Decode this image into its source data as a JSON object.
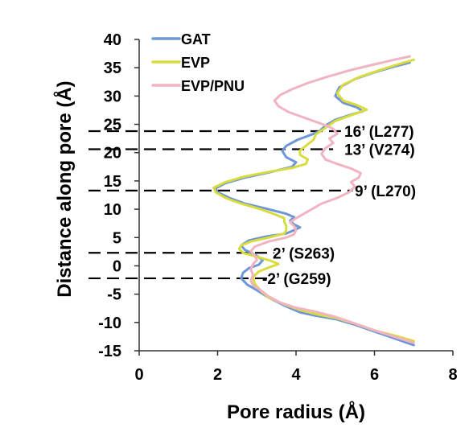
{
  "chart_data": {
    "type": "line",
    "title": "",
    "xlabel": "Pore radius (Å)",
    "ylabel": "Distance along pore (Å)",
    "xlim": [
      0,
      8
    ],
    "ylim": [
      -15,
      40
    ],
    "xticks": [
      "0",
      "2",
      "4",
      "6",
      "8"
    ],
    "yticks": [
      "-15",
      "-10",
      "-5",
      "0",
      "5",
      "10",
      "15",
      "20",
      "25",
      "30",
      "35",
      "40"
    ],
    "legend_position": "top-left",
    "grid": false,
    "series": [
      {
        "name": "GAT",
        "color": "#6f97d8",
        "points": [
          [
            7.0,
            -14
          ],
          [
            6.5,
            -12.8
          ],
          [
            6.0,
            -11.6
          ],
          [
            5.5,
            -10.4
          ],
          [
            5.0,
            -9.4
          ],
          [
            4.5,
            -8.8
          ],
          [
            4.1,
            -8.2
          ],
          [
            3.7,
            -7.0
          ],
          [
            3.3,
            -5.6
          ],
          [
            3.0,
            -4.3
          ],
          [
            2.75,
            -3.3
          ],
          [
            2.6,
            -2.2
          ],
          [
            2.65,
            -1.2
          ],
          [
            2.8,
            -0.4
          ],
          [
            3.05,
            0.2
          ],
          [
            3.15,
            1.0
          ],
          [
            2.95,
            2.0
          ],
          [
            2.7,
            2.8
          ],
          [
            2.6,
            3.6
          ],
          [
            2.8,
            4.5
          ],
          [
            3.25,
            5.2
          ],
          [
            3.75,
            5.7
          ],
          [
            3.95,
            6.3
          ],
          [
            4.1,
            6.8
          ],
          [
            3.95,
            7.3
          ],
          [
            3.85,
            8.0
          ],
          [
            3.95,
            8.6
          ],
          [
            3.75,
            9.2
          ],
          [
            3.3,
            10.0
          ],
          [
            2.7,
            11.0
          ],
          [
            2.3,
            12.0
          ],
          [
            2.0,
            13.0
          ],
          [
            1.95,
            13.7
          ],
          [
            2.2,
            14.6
          ],
          [
            2.7,
            15.6
          ],
          [
            3.3,
            16.5
          ],
          [
            3.9,
            17.5
          ],
          [
            4.0,
            18.3
          ],
          [
            3.75,
            19.2
          ],
          [
            3.65,
            20.3
          ],
          [
            3.75,
            21.2
          ],
          [
            4.05,
            22.3
          ],
          [
            4.4,
            23.2
          ],
          [
            4.6,
            23.8
          ],
          [
            4.75,
            24.8
          ],
          [
            5.0,
            25.8
          ],
          [
            5.4,
            26.7
          ],
          [
            5.7,
            27.3
          ],
          [
            5.55,
            28.0
          ],
          [
            5.2,
            28.8
          ],
          [
            5.0,
            30.0
          ],
          [
            5.1,
            31.5
          ],
          [
            5.5,
            33.0
          ],
          [
            6.0,
            34.2
          ],
          [
            6.5,
            35.2
          ],
          [
            6.9,
            35.9
          ]
        ]
      },
      {
        "name": "EVP",
        "color": "#d8dc3c",
        "points": [
          [
            7.0,
            -13.3
          ],
          [
            6.5,
            -12.3
          ],
          [
            6.0,
            -11.4
          ],
          [
            5.5,
            -10.2
          ],
          [
            5.0,
            -9.2
          ],
          [
            4.5,
            -8.5
          ],
          [
            4.1,
            -7.8
          ],
          [
            3.7,
            -6.8
          ],
          [
            3.3,
            -5.6
          ],
          [
            3.1,
            -4.4
          ],
          [
            2.95,
            -3.2
          ],
          [
            2.9,
            -2.0
          ],
          [
            3.05,
            -1.0
          ],
          [
            3.3,
            -0.3
          ],
          [
            3.55,
            0.3
          ],
          [
            3.35,
            0.9
          ],
          [
            3.0,
            1.6
          ],
          [
            2.65,
            2.3
          ],
          [
            2.55,
            3.0
          ],
          [
            2.6,
            3.6
          ],
          [
            2.85,
            4.3
          ],
          [
            3.3,
            5.0
          ],
          [
            3.7,
            5.7
          ],
          [
            3.75,
            6.3
          ],
          [
            3.75,
            7.0
          ],
          [
            3.7,
            7.8
          ],
          [
            3.7,
            8.4
          ],
          [
            3.5,
            9.0
          ],
          [
            3.1,
            10.0
          ],
          [
            2.6,
            11.0
          ],
          [
            2.2,
            12.0
          ],
          [
            1.95,
            13.0
          ],
          [
            1.9,
            13.8
          ],
          [
            2.2,
            14.8
          ],
          [
            2.7,
            15.8
          ],
          [
            3.3,
            16.6
          ],
          [
            3.9,
            17.3
          ],
          [
            4.25,
            18.0
          ],
          [
            4.3,
            18.8
          ],
          [
            4.1,
            19.6
          ],
          [
            4.1,
            20.4
          ],
          [
            4.25,
            21.2
          ],
          [
            4.45,
            22.3
          ],
          [
            4.5,
            23.2
          ],
          [
            4.75,
            24.4
          ],
          [
            5.0,
            25.6
          ],
          [
            5.4,
            26.6
          ],
          [
            5.8,
            27.6
          ],
          [
            5.55,
            28.4
          ],
          [
            5.2,
            29.2
          ],
          [
            5.05,
            30.5
          ],
          [
            5.2,
            32.0
          ],
          [
            5.6,
            33.3
          ],
          [
            6.1,
            34.5
          ],
          [
            6.6,
            35.6
          ],
          [
            7.0,
            36.4
          ]
        ]
      },
      {
        "name": "EVP/PNU",
        "color": "#f0b4c2",
        "points": [
          [
            7.0,
            -13.6
          ],
          [
            6.5,
            -12.5
          ],
          [
            6.0,
            -11.4
          ],
          [
            5.5,
            -10.2
          ],
          [
            5.0,
            -9.0
          ],
          [
            4.5,
            -8.1
          ],
          [
            4.0,
            -7.4
          ],
          [
            3.6,
            -6.5
          ],
          [
            3.3,
            -5.4
          ],
          [
            3.1,
            -4.3
          ],
          [
            2.9,
            -3.4
          ],
          [
            2.85,
            -2.6
          ],
          [
            2.9,
            -1.6
          ],
          [
            2.85,
            -0.6
          ],
          [
            2.9,
            0.3
          ],
          [
            3.0,
            1.0
          ],
          [
            2.95,
            1.8
          ],
          [
            2.85,
            2.6
          ],
          [
            2.95,
            3.4
          ],
          [
            3.3,
            4.3
          ],
          [
            3.75,
            5.0
          ],
          [
            3.95,
            5.6
          ],
          [
            4.0,
            6.3
          ],
          [
            3.95,
            7.0
          ],
          [
            3.85,
            7.7
          ],
          [
            4.0,
            8.4
          ],
          [
            4.2,
            9.2
          ],
          [
            4.4,
            10.0
          ],
          [
            4.65,
            11.0
          ],
          [
            5.05,
            12.0
          ],
          [
            5.35,
            13.0
          ],
          [
            5.5,
            14.0
          ],
          [
            5.4,
            14.8
          ],
          [
            5.6,
            15.6
          ],
          [
            5.65,
            16.4
          ],
          [
            5.4,
            17.2
          ],
          [
            5.05,
            18.0
          ],
          [
            4.75,
            18.8
          ],
          [
            4.65,
            19.8
          ],
          [
            4.75,
            20.8
          ],
          [
            4.95,
            21.7
          ],
          [
            4.85,
            22.5
          ],
          [
            5.05,
            23.3
          ],
          [
            4.95,
            24.2
          ],
          [
            4.8,
            24.7
          ],
          [
            4.6,
            25.2
          ],
          [
            4.2,
            26.2
          ],
          [
            3.8,
            27.2
          ],
          [
            3.55,
            28.2
          ],
          [
            3.45,
            29.2
          ],
          [
            3.6,
            30.2
          ],
          [
            3.9,
            31.2
          ],
          [
            4.3,
            32.3
          ],
          [
            4.8,
            33.4
          ],
          [
            5.4,
            34.6
          ],
          [
            6.0,
            35.6
          ],
          [
            6.5,
            36.4
          ],
          [
            6.9,
            37.0
          ]
        ]
      }
    ],
    "annotations": [
      {
        "label": "16’ (L277)",
        "y": 23.8,
        "x_end": 4.9
      },
      {
        "label": "13’ (V274)",
        "y": 20.6,
        "x_end": 4.7
      },
      {
        "label": "9’ (L270)",
        "y": 13.3,
        "x_end": 5.2
      },
      {
        "label": "2’ (S263)",
        "y": 2.3,
        "x_end": 3.2
      },
      {
        "label": "-2’ (G259)",
        "y": -2.2,
        "x_end": 3.1
      }
    ]
  }
}
